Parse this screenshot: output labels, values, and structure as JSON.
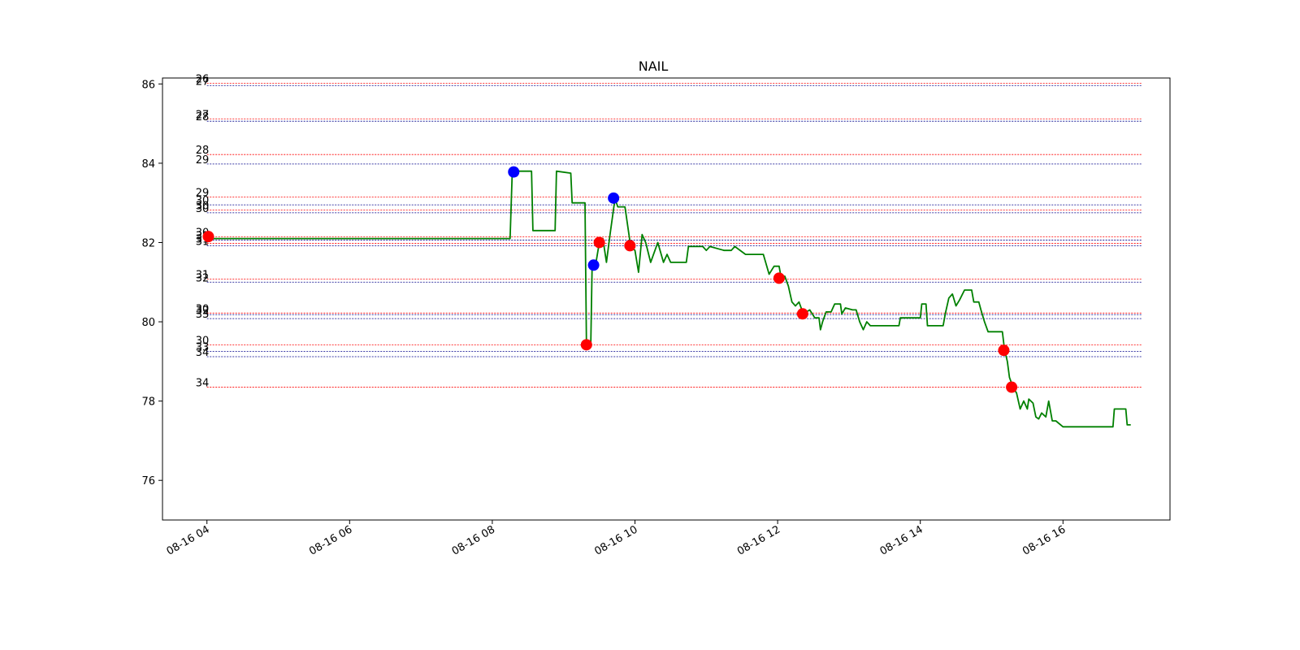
{
  "chart_data": {
    "type": "line",
    "title": "NAIL",
    "xlabel": "",
    "ylabel": "",
    "ylim": [
      75,
      86.15
    ],
    "xlim_hours": [
      3.377,
      17.5
    ],
    "x_ticks": [
      {
        "label": "08-16 04",
        "hour": 4
      },
      {
        "label": "08-16 06",
        "hour": 6
      },
      {
        "label": "08-16 08",
        "hour": 8
      },
      {
        "label": "08-16 10",
        "hour": 10
      },
      {
        "label": "08-16 12",
        "hour": 12
      },
      {
        "label": "08-16 14",
        "hour": 14
      },
      {
        "label": "08-16 16",
        "hour": 16
      }
    ],
    "y_ticks": [
      76,
      78,
      80,
      82,
      84,
      86
    ],
    "grid": false,
    "line_color": "#008000",
    "price_series": [
      [
        4.0,
        82.1
      ],
      [
        8.25,
        82.1
      ],
      [
        8.28,
        83.8
      ],
      [
        8.55,
        83.8
      ],
      [
        8.57,
        82.3
      ],
      [
        8.88,
        82.3
      ],
      [
        8.9,
        83.8
      ],
      [
        9.1,
        83.75
      ],
      [
        9.12,
        83.0
      ],
      [
        9.3,
        83.0
      ],
      [
        9.32,
        79.4
      ],
      [
        9.38,
        79.4
      ],
      [
        9.4,
        81.45
      ],
      [
        9.45,
        81.45
      ],
      [
        9.5,
        82.0
      ],
      [
        9.55,
        82.1
      ],
      [
        9.6,
        81.5
      ],
      [
        9.65,
        82.2
      ],
      [
        9.72,
        83.1
      ],
      [
        9.76,
        82.9
      ],
      [
        9.86,
        82.9
      ],
      [
        9.9,
        82.4
      ],
      [
        9.94,
        81.9
      ],
      [
        10.0,
        81.8
      ],
      [
        10.05,
        81.25
      ],
      [
        10.1,
        82.2
      ],
      [
        10.15,
        82.0
      ],
      [
        10.22,
        81.5
      ],
      [
        10.28,
        81.8
      ],
      [
        10.32,
        82.0
      ],
      [
        10.4,
        81.5
      ],
      [
        10.45,
        81.7
      ],
      [
        10.5,
        81.5
      ],
      [
        10.72,
        81.5
      ],
      [
        10.75,
        81.9
      ],
      [
        10.95,
        81.9
      ],
      [
        11.0,
        81.8
      ],
      [
        11.05,
        81.9
      ],
      [
        11.25,
        81.8
      ],
      [
        11.35,
        81.8
      ],
      [
        11.4,
        81.9
      ],
      [
        11.55,
        81.7
      ],
      [
        11.8,
        81.7
      ],
      [
        11.88,
        81.2
      ],
      [
        11.95,
        81.4
      ],
      [
        12.02,
        81.4
      ],
      [
        12.05,
        81.1
      ],
      [
        12.1,
        81.15
      ],
      [
        12.15,
        80.9
      ],
      [
        12.2,
        80.5
      ],
      [
        12.25,
        80.4
      ],
      [
        12.3,
        80.5
      ],
      [
        12.36,
        80.2
      ],
      [
        12.45,
        80.3
      ],
      [
        12.52,
        80.1
      ],
      [
        12.58,
        80.1
      ],
      [
        12.6,
        79.8
      ],
      [
        12.63,
        80.0
      ],
      [
        12.68,
        80.25
      ],
      [
        12.75,
        80.25
      ],
      [
        12.8,
        80.45
      ],
      [
        12.88,
        80.45
      ],
      [
        12.9,
        80.2
      ],
      [
        12.95,
        80.35
      ],
      [
        13.05,
        80.3
      ],
      [
        13.1,
        80.3
      ],
      [
        13.15,
        80.0
      ],
      [
        13.2,
        79.8
      ],
      [
        13.25,
        80.0
      ],
      [
        13.3,
        79.9
      ],
      [
        13.7,
        79.9
      ],
      [
        13.72,
        80.1
      ],
      [
        14.0,
        80.1
      ],
      [
        14.02,
        80.45
      ],
      [
        14.08,
        80.45
      ],
      [
        14.1,
        79.9
      ],
      [
        14.32,
        79.9
      ],
      [
        14.35,
        80.2
      ],
      [
        14.4,
        80.6
      ],
      [
        14.45,
        80.7
      ],
      [
        14.5,
        80.4
      ],
      [
        14.55,
        80.55
      ],
      [
        14.62,
        80.8
      ],
      [
        14.72,
        80.8
      ],
      [
        14.75,
        80.5
      ],
      [
        14.82,
        80.5
      ],
      [
        14.85,
        80.3
      ],
      [
        14.9,
        80.0
      ],
      [
        14.95,
        79.75
      ],
      [
        15.15,
        79.75
      ],
      [
        15.18,
        79.3
      ],
      [
        15.22,
        79.0
      ],
      [
        15.25,
        78.6
      ],
      [
        15.3,
        78.35
      ],
      [
        15.35,
        78.2
      ],
      [
        15.4,
        77.8
      ],
      [
        15.45,
        78.0
      ],
      [
        15.5,
        77.8
      ],
      [
        15.52,
        78.05
      ],
      [
        15.58,
        77.95
      ],
      [
        15.62,
        77.6
      ],
      [
        15.66,
        77.55
      ],
      [
        15.7,
        77.7
      ],
      [
        15.76,
        77.6
      ],
      [
        15.8,
        78.0
      ],
      [
        15.85,
        77.5
      ],
      [
        15.9,
        77.5
      ],
      [
        16.0,
        77.35
      ],
      [
        16.7,
        77.35
      ],
      [
        16.72,
        77.8
      ],
      [
        16.88,
        77.8
      ],
      [
        16.9,
        77.4
      ],
      [
        16.95,
        77.4
      ]
    ],
    "buy_points": [
      {
        "hour": 8.3,
        "price": 83.78,
        "color": "#0000ff"
      },
      {
        "hour": 9.42,
        "price": 81.43,
        "color": "#0000ff"
      },
      {
        "hour": 9.7,
        "price": 83.12,
        "color": "#0000ff"
      }
    ],
    "sell_points": [
      {
        "hour": 4.02,
        "price": 82.15,
        "color": "#ff0000"
      },
      {
        "hour": 9.32,
        "price": 79.42,
        "color": "#ff0000"
      },
      {
        "hour": 9.5,
        "price": 82.0,
        "color": "#ff0000"
      },
      {
        "hour": 9.93,
        "price": 81.92,
        "color": "#ff0000"
      },
      {
        "hour": 12.02,
        "price": 81.1,
        "color": "#ff0000"
      },
      {
        "hour": 12.35,
        "price": 80.2,
        "color": "#ff0000"
      },
      {
        "hour": 15.17,
        "price": 79.28,
        "color": "#ff0000"
      },
      {
        "hour": 15.28,
        "price": 78.35,
        "color": "#ff0000"
      }
    ],
    "level_lines": [
      {
        "label": "26",
        "price": 86.02,
        "color": "#ff0000"
      },
      {
        "label": "27",
        "price": 85.96,
        "color": "#00008b"
      },
      {
        "label": "27",
        "price": 85.12,
        "color": "#ff0000"
      },
      {
        "label": "28",
        "price": 85.06,
        "color": "#00008b"
      },
      {
        "label": "28",
        "price": 84.22,
        "color": "#ff0000"
      },
      {
        "label": "29",
        "price": 83.98,
        "color": "#00008b"
      },
      {
        "label": "29",
        "price": 83.15,
        "color": "#ff0000"
      },
      {
        "label": "30",
        "price": 82.95,
        "color": "#00008b"
      },
      {
        "label": "30",
        "price": 82.82,
        "color": "#ff0000"
      },
      {
        "label": "30",
        "price": 82.75,
        "color": "#00008b"
      },
      {
        "label": "30",
        "price": 82.14,
        "color": "#ff0000"
      },
      {
        "label": "31",
        "price": 82.06,
        "color": "#00008b"
      },
      {
        "label": "31",
        "price": 81.98,
        "color": "#ff0000"
      },
      {
        "label": "31",
        "price": 81.92,
        "color": "#00008b"
      },
      {
        "label": "31",
        "price": 81.08,
        "color": "#ff0000"
      },
      {
        "label": "32",
        "price": 81.0,
        "color": "#00008b"
      },
      {
        "label": "30",
        "price": 80.22,
        "color": "#ff0000"
      },
      {
        "label": "32",
        "price": 80.18,
        "color": "#00008b"
      },
      {
        "label": "33",
        "price": 80.08,
        "color": "#00008b"
      },
      {
        "label": "30",
        "price": 79.42,
        "color": "#ff0000"
      },
      {
        "label": "33",
        "price": 79.25,
        "color": "#00008b"
      },
      {
        "label": "34",
        "price": 79.12,
        "color": "#00008b"
      },
      {
        "label": "34",
        "price": 78.35,
        "color": "#ff0000"
      }
    ]
  }
}
